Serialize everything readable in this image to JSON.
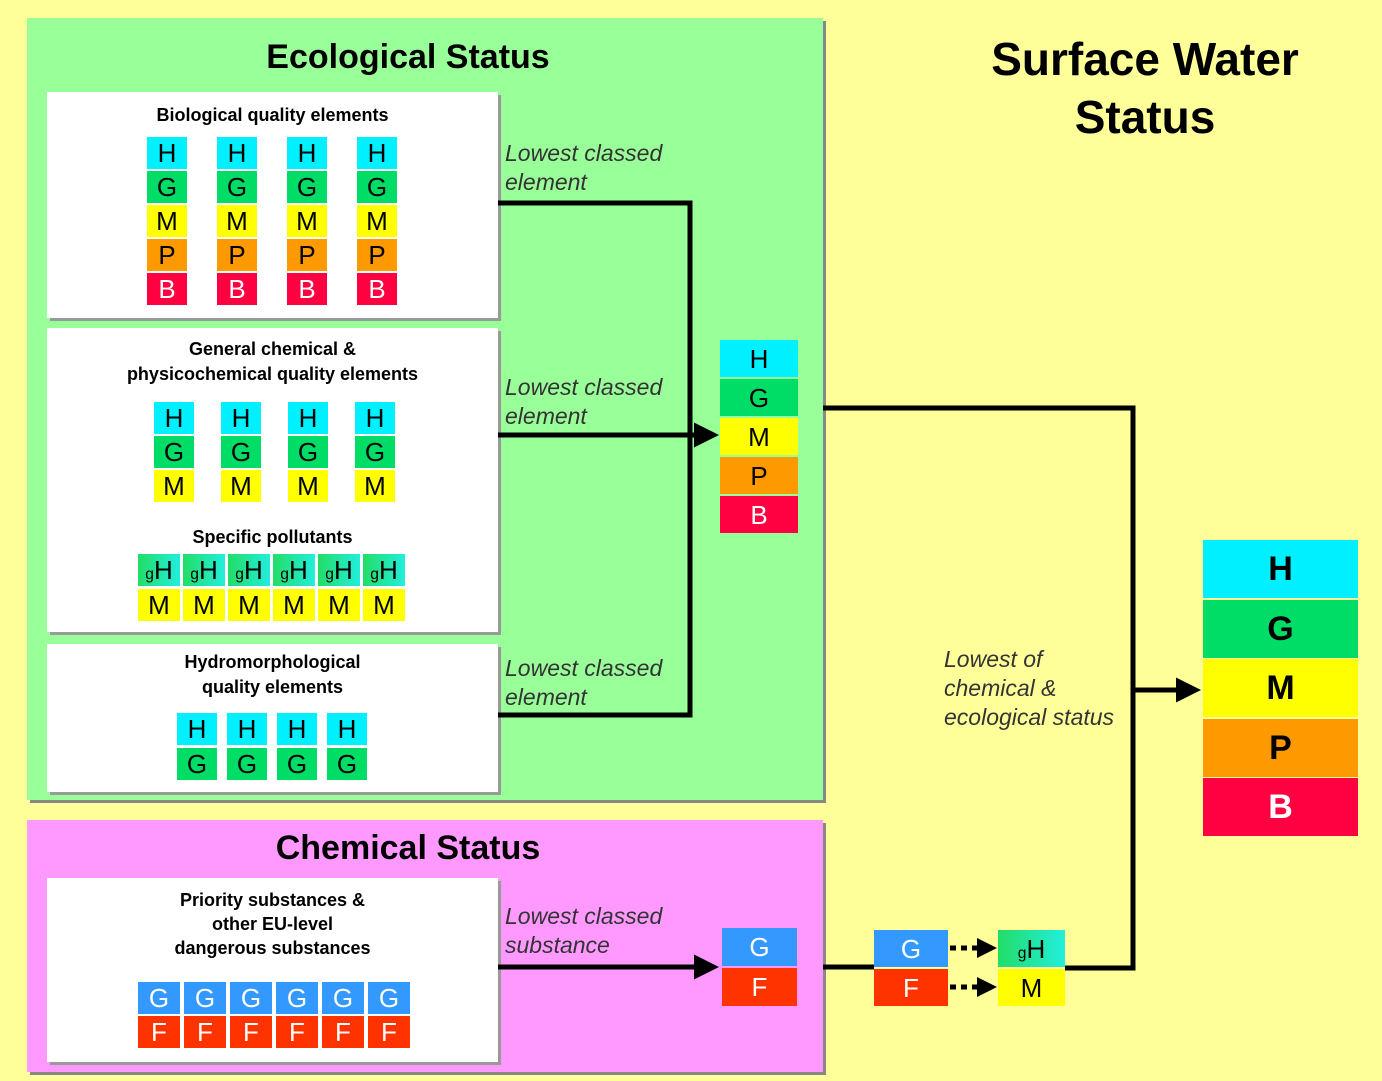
{
  "surface_water_status": {
    "title": "Surface Water Status",
    "label": [
      "Lowest of",
      "chemical &",
      "ecological status"
    ],
    "result": [
      "H",
      "G",
      "M",
      "P",
      "B"
    ]
  },
  "ecological_status": {
    "title": "Ecological Status",
    "biological": {
      "title": [
        "Biological quality elements"
      ],
      "columns": [
        [
          "H",
          "G",
          "M",
          "P",
          "B"
        ],
        [
          "H",
          "G",
          "M",
          "P",
          "B"
        ],
        [
          "H",
          "G",
          "M",
          "P",
          "B"
        ],
        [
          "H",
          "G",
          "M",
          "P",
          "B"
        ]
      ]
    },
    "physicochemical": {
      "title": [
        "General chemical &",
        "physicochemical quality elements"
      ],
      "columns": [
        [
          "H",
          "G",
          "M"
        ],
        [
          "H",
          "G",
          "M"
        ],
        [
          "H",
          "G",
          "M"
        ],
        [
          "H",
          "G",
          "M"
        ]
      ]
    },
    "specific_pollutants": {
      "title": [
        "Specific pollutants"
      ],
      "columns": [
        [
          "gH",
          "M"
        ],
        [
          "gH",
          "M"
        ],
        [
          "gH",
          "M"
        ],
        [
          "gH",
          "M"
        ],
        [
          "gH",
          "M"
        ],
        [
          "gH",
          "M"
        ]
      ]
    },
    "hydromorphological": {
      "title": [
        "Hydromorphological",
        "quality elements"
      ],
      "columns": [
        [
          "H",
          "G"
        ],
        [
          "H",
          "G"
        ],
        [
          "H",
          "G"
        ],
        [
          "H",
          "G"
        ]
      ]
    },
    "links": [
      [
        "Lowest classed",
        "element"
      ],
      [
        "Lowest classed",
        "element"
      ],
      [
        "Lowest classed",
        "element"
      ]
    ],
    "result": [
      "H",
      "G",
      "M",
      "P",
      "B"
    ]
  },
  "chemical_status": {
    "title": "Chemical Status",
    "priority": {
      "title": [
        "Priority substances &",
        "other EU-level",
        "dangerous substances"
      ],
      "columns": [
        [
          "G",
          "F"
        ],
        [
          "G",
          "F"
        ],
        [
          "G",
          "F"
        ],
        [
          "G",
          "F"
        ],
        [
          "G",
          "F"
        ],
        [
          "G",
          "F"
        ]
      ]
    },
    "link": [
      "Lowest classed",
      "substance"
    ],
    "result": [
      "G",
      "F"
    ],
    "mapping": {
      "from": [
        "G",
        "F"
      ],
      "to": [
        "gH",
        "M"
      ]
    }
  }
}
